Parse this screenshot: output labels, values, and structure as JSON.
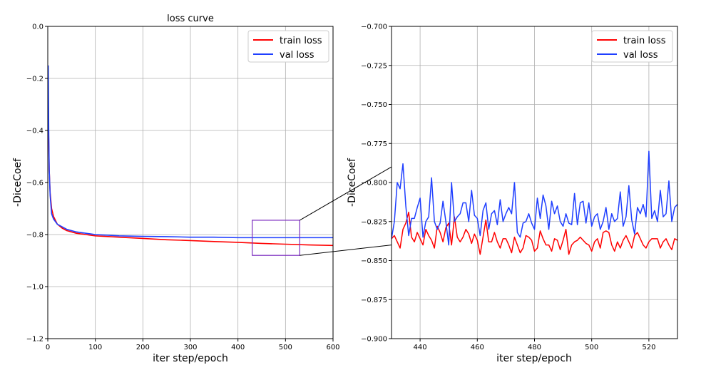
{
  "chart_data": [
    {
      "type": "line",
      "title": "loss curve",
      "xlabel": "iter step/epoch",
      "ylabel": "-DiceCoef",
      "xlim": [
        0,
        600
      ],
      "ylim": [
        -1.2,
        0.0
      ],
      "xticks": [
        0,
        100,
        200,
        300,
        400,
        500,
        600
      ],
      "yticks": [
        0.0,
        -0.2,
        -0.4,
        -0.6,
        -0.8,
        -1.0,
        -1.2
      ],
      "xtick_labels": [
        "0",
        "100",
        "200",
        "300",
        "400",
        "500",
        "600"
      ],
      "ytick_labels": [
        "0.0",
        "−0.2",
        "−0.4",
        "−0.6",
        "−0.8",
        "−1.0",
        "−1.2"
      ],
      "grid": true,
      "legend": "top-right",
      "series": [
        {
          "name": "train loss",
          "color": "#ff0000",
          "x": [
            1,
            2,
            3,
            5,
            8,
            12,
            20,
            30,
            40,
            60,
            80,
            100,
            150,
            200,
            250,
            300,
            350,
            400,
            450,
            500,
            550,
            600
          ],
          "y": [
            -0.3,
            -0.45,
            -0.55,
            -0.64,
            -0.7,
            -0.73,
            -0.76,
            -0.775,
            -0.785,
            -0.795,
            -0.8,
            -0.805,
            -0.81,
            -0.815,
            -0.82,
            -0.823,
            -0.827,
            -0.83,
            -0.834,
            -0.837,
            -0.84,
            -0.842
          ]
        },
        {
          "name": "val loss",
          "color": "#1f3fff",
          "x": [
            1,
            2,
            3,
            5,
            8,
            12,
            20,
            30,
            40,
            60,
            80,
            100,
            150,
            200,
            250,
            300,
            350,
            400,
            450,
            500,
            550,
            600
          ],
          "y": [
            -0.15,
            -0.4,
            -0.55,
            -0.65,
            -0.72,
            -0.74,
            -0.76,
            -0.77,
            -0.78,
            -0.79,
            -0.795,
            -0.8,
            -0.805,
            -0.807,
            -0.808,
            -0.81,
            -0.81,
            -0.812,
            -0.812,
            -0.812,
            -0.812,
            -0.812
          ]
        }
      ],
      "annotation": {
        "type": "zoom-box",
        "xrange": [
          430,
          530
        ],
        "yrange": [
          -0.88,
          -0.745
        ],
        "color": "#7b2cbf"
      }
    },
    {
      "type": "line",
      "title": "",
      "xlabel": "iter step/epoch",
      "ylabel": "-DiceCoef",
      "xlim": [
        430,
        530
      ],
      "ylim": [
        -0.9,
        -0.7
      ],
      "xticks": [
        440,
        460,
        480,
        500,
        520
      ],
      "yticks": [
        -0.7,
        -0.725,
        -0.75,
        -0.775,
        -0.8,
        -0.825,
        -0.85,
        -0.875,
        -0.9
      ],
      "xtick_labels": [
        "440",
        "460",
        "480",
        "500",
        "520"
      ],
      "ytick_labels": [
        "−0.700",
        "−0.725",
        "−0.750",
        "−0.775",
        "−0.800",
        "−0.825",
        "−0.850",
        "−0.875",
        "−0.900"
      ],
      "grid": true,
      "legend": "top-right",
      "series": [
        {
          "name": "train loss",
          "color": "#ff0000",
          "x": [
            430,
            431,
            432,
            433,
            434,
            435,
            436,
            437,
            438,
            439,
            440,
            441,
            442,
            443,
            444,
            445,
            446,
            447,
            448,
            449,
            450,
            451,
            452,
            453,
            454,
            455,
            456,
            457,
            458,
            459,
            460,
            461,
            462,
            463,
            464,
            465,
            466,
            467,
            468,
            469,
            470,
            471,
            472,
            473,
            474,
            475,
            476,
            477,
            478,
            479,
            480,
            481,
            482,
            483,
            484,
            485,
            486,
            487,
            488,
            489,
            490,
            491,
            492,
            493,
            494,
            495,
            496,
            497,
            498,
            499,
            500,
            501,
            502,
            503,
            504,
            505,
            506,
            507,
            508,
            509,
            510,
            511,
            512,
            513,
            514,
            515,
            516,
            517,
            518,
            519,
            520,
            521,
            522,
            523,
            524,
            525,
            526,
            527,
            528,
            529,
            530
          ],
          "y": [
            -0.836,
            -0.834,
            -0.838,
            -0.842,
            -0.83,
            -0.826,
            -0.819,
            -0.835,
            -0.838,
            -0.832,
            -0.836,
            -0.84,
            -0.83,
            -0.834,
            -0.837,
            -0.842,
            -0.828,
            -0.832,
            -0.838,
            -0.829,
            -0.826,
            -0.84,
            -0.822,
            -0.835,
            -0.838,
            -0.835,
            -0.83,
            -0.833,
            -0.839,
            -0.833,
            -0.837,
            -0.846,
            -0.835,
            -0.824,
            -0.838,
            -0.838,
            -0.832,
            -0.838,
            -0.842,
            -0.836,
            -0.836,
            -0.84,
            -0.845,
            -0.835,
            -0.84,
            -0.845,
            -0.842,
            -0.834,
            -0.835,
            -0.837,
            -0.844,
            -0.842,
            -0.831,
            -0.836,
            -0.84,
            -0.84,
            -0.844,
            -0.836,
            -0.837,
            -0.843,
            -0.837,
            -0.83,
            -0.846,
            -0.84,
            -0.838,
            -0.837,
            -0.835,
            -0.837,
            -0.839,
            -0.84,
            -0.844,
            -0.838,
            -0.836,
            -0.842,
            -0.832,
            -0.831,
            -0.832,
            -0.84,
            -0.844,
            -0.838,
            -0.842,
            -0.837,
            -0.834,
            -0.838,
            -0.842,
            -0.834,
            -0.832,
            -0.836,
            -0.84,
            -0.842,
            -0.838,
            -0.836,
            -0.836,
            -0.836,
            -0.842,
            -0.838,
            -0.836,
            -0.84,
            -0.843,
            -0.836,
            -0.837
          ]
        },
        {
          "name": "val loss",
          "color": "#1f3fff",
          "x": [
            430,
            431,
            432,
            433,
            434,
            435,
            436,
            437,
            438,
            439,
            440,
            441,
            442,
            443,
            444,
            445,
            446,
            447,
            448,
            449,
            450,
            451,
            452,
            453,
            454,
            455,
            456,
            457,
            458,
            459,
            460,
            461,
            462,
            463,
            464,
            465,
            466,
            467,
            468,
            469,
            470,
            471,
            472,
            473,
            474,
            475,
            476,
            477,
            478,
            479,
            480,
            481,
            482,
            483,
            484,
            485,
            486,
            487,
            488,
            489,
            490,
            491,
            492,
            493,
            494,
            495,
            496,
            497,
            498,
            499,
            500,
            501,
            502,
            503,
            504,
            505,
            506,
            507,
            508,
            509,
            510,
            511,
            512,
            513,
            514,
            515,
            516,
            517,
            518,
            519,
            520,
            521,
            522,
            523,
            524,
            525,
            526,
            527,
            528,
            529,
            530
          ],
          "y": [
            -0.836,
            -0.825,
            -0.8,
            -0.804,
            -0.788,
            -0.815,
            -0.834,
            -0.823,
            -0.823,
            -0.816,
            -0.81,
            -0.835,
            -0.825,
            -0.822,
            -0.797,
            -0.825,
            -0.83,
            -0.826,
            -0.812,
            -0.825,
            -0.84,
            -0.8,
            -0.825,
            -0.822,
            -0.82,
            -0.813,
            -0.813,
            -0.825,
            -0.805,
            -0.821,
            -0.823,
            -0.834,
            -0.818,
            -0.813,
            -0.83,
            -0.82,
            -0.818,
            -0.827,
            -0.811,
            -0.825,
            -0.82,
            -0.816,
            -0.82,
            -0.8,
            -0.832,
            -0.835,
            -0.826,
            -0.825,
            -0.82,
            -0.826,
            -0.83,
            -0.81,
            -0.823,
            -0.808,
            -0.815,
            -0.83,
            -0.812,
            -0.82,
            -0.815,
            -0.825,
            -0.828,
            -0.82,
            -0.826,
            -0.827,
            -0.807,
            -0.827,
            -0.813,
            -0.812,
            -0.826,
            -0.813,
            -0.828,
            -0.822,
            -0.82,
            -0.83,
            -0.825,
            -0.816,
            -0.83,
            -0.82,
            -0.825,
            -0.823,
            -0.806,
            -0.828,
            -0.822,
            -0.802,
            -0.824,
            -0.833,
            -0.816,
            -0.82,
            -0.814,
            -0.822,
            -0.78,
            -0.823,
            -0.818,
            -0.825,
            -0.805,
            -0.822,
            -0.82,
            -0.799,
            -0.825,
            -0.816,
            -0.814
          ]
        }
      ]
    }
  ]
}
